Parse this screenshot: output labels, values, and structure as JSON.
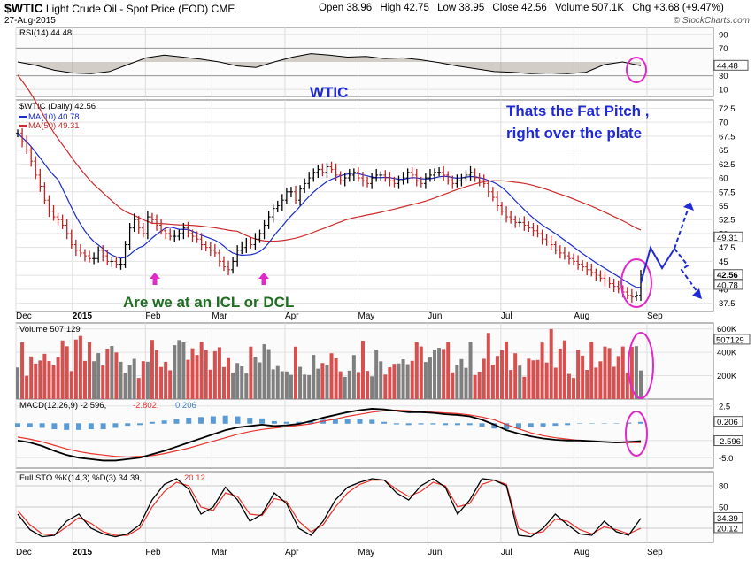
{
  "header": {
    "symbol": "$WTIC",
    "name": "Light Crude Oil - Spot Price (EOD)",
    "exchange": "CME",
    "date": "27-Aug-2015",
    "quote": {
      "open": "Open 38.96",
      "high": "High 42.75",
      "low": "Low 38.95",
      "close": "Close 42.56",
      "volume": "Volume 507.1K",
      "chg": "Chg +3.68 (+9.47%)"
    },
    "logo": "© StockCharts.com"
  },
  "chart_data": [
    {
      "type": "line",
      "panel": "RSI",
      "legend": "RSI(14) 44.48",
      "last_label": "44.48",
      "ylim": [
        0,
        100
      ],
      "yticks": [
        10,
        30,
        70,
        90
      ],
      "values": [
        50,
        45,
        38,
        34,
        33,
        36,
        46,
        56,
        60,
        57,
        54,
        50,
        44,
        42,
        50,
        57,
        62,
        60,
        57,
        58,
        55,
        56,
        53,
        49,
        44,
        40,
        36,
        35,
        33,
        34,
        33,
        35,
        46,
        50,
        44.48
      ]
    },
    {
      "type": "line",
      "panel": "Price",
      "title": "WTIC",
      "legend": "$WTIC (Daily) 42.56",
      "ylim": [
        36,
        74
      ],
      "yticks": [
        37.5,
        40,
        42.5,
        45,
        47.5,
        50,
        52.5,
        55,
        57.5,
        60,
        62.5,
        65,
        67.5,
        70,
        72.5
      ],
      "x_labels": [
        "Dec",
        "2015",
        "Feb",
        "Mar",
        "Apr",
        "May",
        "Jun",
        "Jul",
        "Aug",
        "Sep"
      ],
      "x_positions": [
        0,
        17,
        39,
        59,
        81,
        103,
        124,
        146,
        168,
        190
      ],
      "x_max": 210,
      "price": [
        68.0,
        66.5,
        65.0,
        63.0,
        60.5,
        58.5,
        56.0,
        54.0,
        53.0,
        52.5,
        51.5,
        50.0,
        48.0,
        47.0,
        46.5,
        46.0,
        45.5,
        45.5,
        47.0,
        46.0,
        45.0,
        45.0,
        44.5,
        44.5,
        48.0,
        51.0,
        52.5,
        51.0,
        50.0,
        53.0,
        52.5,
        51.5,
        50.5,
        50.0,
        49.5,
        49.5,
        50.0,
        51.0,
        50.0,
        49.5,
        49.0,
        48.0,
        47.5,
        47.0,
        46.5,
        45.0,
        44.0,
        43.5,
        45.0,
        47.0,
        47.5,
        48.5,
        48.0,
        49.0,
        50.0,
        51.5,
        53.0,
        54.5,
        55.0,
        56.0,
        57.5,
        57.5,
        56.0,
        58.0,
        59.0,
        60.0,
        61.0,
        61.5,
        61.0,
        62.0,
        61.5,
        60.5,
        59.5,
        60.0,
        60.5,
        61.0,
        60.0,
        59.5,
        59.0,
        60.0,
        60.5,
        60.5,
        60.0,
        59.5,
        59.0,
        59.5,
        60.0,
        61.0,
        60.5,
        59.5,
        59.0,
        60.0,
        60.5,
        61.0,
        61.0,
        60.5,
        59.5,
        59.0,
        59.5,
        60.0,
        60.5,
        61.0,
        60.0,
        59.5,
        59.0,
        57.5,
        56.5,
        55.0,
        54.0,
        53.0,
        52.5,
        52.0,
        52.0,
        51.5,
        51.0,
        50.5,
        50.0,
        49.0,
        48.5,
        48.0,
        47.0,
        46.5,
        46.0,
        45.5,
        45.0,
        44.5,
        44.0,
        43.5,
        43.0,
        42.5,
        42.0,
        41.5,
        41.0,
        40.5,
        40.0,
        39.5,
        38.9,
        38.6,
        38.9,
        42.56
      ],
      "ma10_label": "MA(10) 40.78",
      "ma50_label": "MA(50) 49.31",
      "ma10_color": "#1a2ccc",
      "ma50_color": "#cc2b2b",
      "last_labels": [
        "52.5",
        "49.31",
        "42.56",
        "40.78"
      ]
    },
    {
      "type": "bar",
      "panel": "Volume",
      "legend": "Volume 507,129",
      "ylim": [
        0,
        650000
      ],
      "yticks": [
        "200K",
        "400K",
        "600K"
      ],
      "last_label": "507129",
      "up_color": "#7f7f7f",
      "down_color": "#d65050"
    },
    {
      "type": "line",
      "panel": "MACD",
      "legend_main": "MACD(12,26,9) -2.596,",
      "legend_signal": "-2.802,",
      "legend_hist": "0.206",
      "ylim": [
        -6.5,
        3.5
      ],
      "yticks": [
        "2.5",
        "-2.5",
        "-5.0"
      ],
      "last_labels": [
        "0.206",
        "-2.596"
      ],
      "macd": [
        -2.5,
        -2.8,
        -3.3,
        -4.0,
        -4.6,
        -5.0,
        -5.2,
        -5.4,
        -5.4,
        -5.2,
        -5.0,
        -4.5,
        -4.0,
        -3.4,
        -2.8,
        -2.2,
        -1.6,
        -1.0,
        -0.6,
        -0.4,
        -0.2,
        -0.4,
        -0.3,
        -0.1,
        0.3,
        0.8,
        1.2,
        1.6,
        1.9,
        2.1,
        2.0,
        1.8,
        1.6,
        1.6,
        1.5,
        1.3,
        1.2,
        1.0,
        0.5,
        -0.2,
        -1.0,
        -1.5,
        -1.9,
        -2.2,
        -2.4,
        -2.5,
        -2.5,
        -2.6,
        -2.7,
        -2.8,
        -2.7,
        -2.6
      ],
      "signal": [
        -2.0,
        -2.3,
        -2.7,
        -3.2,
        -3.7,
        -4.1,
        -4.4,
        -4.6,
        -4.8,
        -4.9,
        -4.8,
        -4.7,
        -4.4,
        -4.0,
        -3.6,
        -3.1,
        -2.6,
        -2.1,
        -1.6,
        -1.2,
        -0.9,
        -0.7,
        -0.5,
        -0.3,
        -0.1,
        0.3,
        0.6,
        1.0,
        1.3,
        1.6,
        1.8,
        1.9,
        1.8,
        1.7,
        1.6,
        1.5,
        1.4,
        1.2,
        0.9,
        0.5,
        -0.2,
        -0.8,
        -1.4,
        -1.8,
        -2.1,
        -2.3,
        -2.5,
        -2.6,
        -2.7,
        -2.8,
        -2.8,
        -2.8
      ]
    },
    {
      "type": "line",
      "panel": "Full STO",
      "legend_main": "Full STO %K(14,3) %D(3) 34.39,",
      "legend_d": "20.12",
      "ylim": [
        0,
        100
      ],
      "yticks": [
        "20",
        "50",
        "80"
      ],
      "last_labels": [
        "34.39",
        "20.12"
      ],
      "k": [
        40,
        18,
        8,
        10,
        30,
        40,
        20,
        12,
        8,
        12,
        25,
        60,
        82,
        90,
        75,
        40,
        50,
        78,
        60,
        30,
        40,
        70,
        55,
        20,
        10,
        30,
        60,
        78,
        85,
        90,
        88,
        70,
        60,
        80,
        90,
        78,
        40,
        60,
        90,
        88,
        80,
        10,
        8,
        20,
        40,
        25,
        12,
        10,
        30,
        15,
        10,
        34
      ],
      "d": [
        45,
        25,
        12,
        10,
        22,
        35,
        27,
        15,
        10,
        10,
        20,
        50,
        72,
        85,
        80,
        50,
        45,
        70,
        65,
        40,
        38,
        62,
        58,
        30,
        15,
        25,
        50,
        70,
        82,
        88,
        88,
        75,
        65,
        72,
        85,
        80,
        50,
        55,
        82,
        88,
        82,
        20,
        12,
        15,
        33,
        30,
        18,
        12,
        22,
        18,
        12,
        20
      ]
    }
  ],
  "annotations": {
    "fat_pitch": "Thats the Fat Pitch ,\nright over the plate",
    "icl_question": "Are we at an ICL or DCL",
    "colors": {
      "blue_text": "#1f2ad6",
      "green_text": "#1f6e22",
      "magenta": "#e029c8"
    }
  }
}
